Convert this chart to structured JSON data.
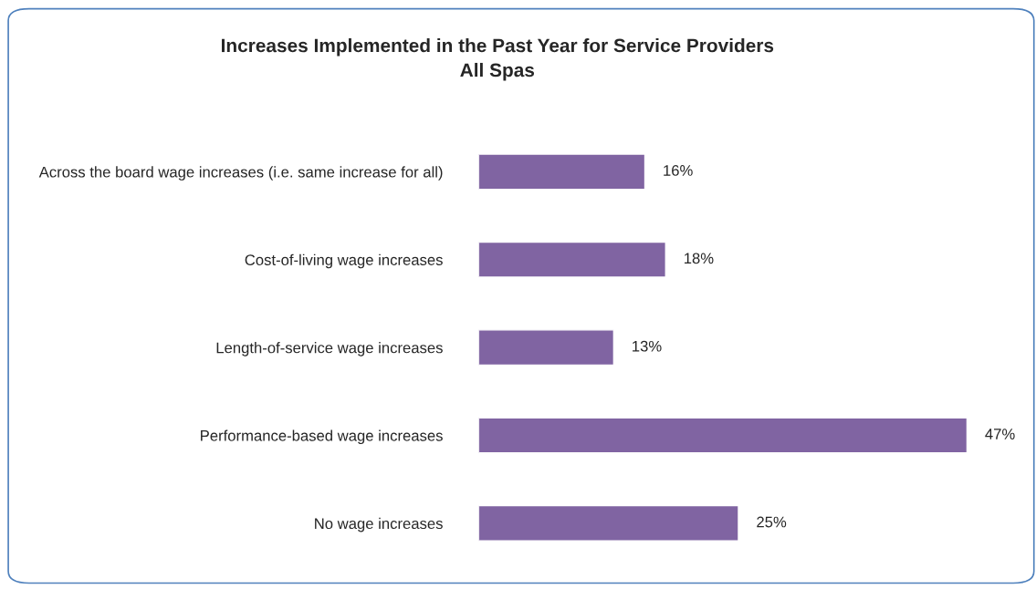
{
  "chart_data": {
    "type": "bar",
    "orientation": "horizontal",
    "title": "Increases Implemented in the Past Year for Service Providers\nAll Spas",
    "categories": [
      "Across the board wage increases (i.e. same increase for all)",
      "Cost-of-living wage increases",
      "Length-of-service wage increases",
      "Performance-based wage increases",
      "No wage increases"
    ],
    "values": [
      16,
      18,
      13,
      47,
      25
    ],
    "value_labels": [
      "16%",
      "18%",
      "13%",
      "47%",
      "25%"
    ],
    "color": "#8064a2",
    "grid": false,
    "legend": false
  }
}
